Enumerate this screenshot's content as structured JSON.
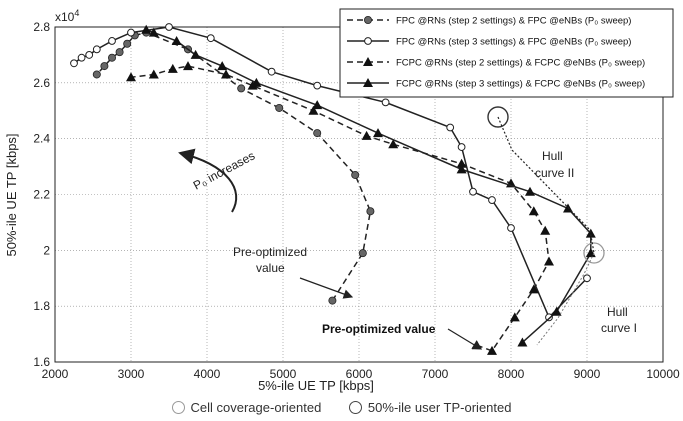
{
  "chart_data": {
    "type": "line",
    "xlabel": "5%-ile UE TP [kbps]",
    "ylabel": "50%-ile UE TP [kbps]",
    "y_multiplier_label": "x10",
    "y_multiplier_exp": "4",
    "xlim": [
      2000,
      10000
    ],
    "ylim": [
      1.6,
      2.8
    ],
    "xticks": [
      2000,
      3000,
      4000,
      5000,
      6000,
      7000,
      8000,
      9000,
      10000
    ],
    "yticks": [
      1.6,
      1.8,
      2.0,
      2.2,
      2.4,
      2.6,
      2.8
    ],
    "ytick_labels": [
      "1.6",
      "1.8",
      "2",
      "2.2",
      "2.4",
      "2.6",
      "2.8"
    ],
    "grid": true,
    "legend_placement": "top-right",
    "series": [
      {
        "name": "FPC @RNs (step 2 settings) & FPC @eNBs (P₀ sweep)",
        "marker": "filled-circle",
        "line": "dashed",
        "x": [
          5650,
          6050,
          6150,
          5950,
          5450,
          4950,
          4450,
          3750,
          3200,
          3050,
          2950,
          2850,
          2750,
          2650,
          2550
        ],
        "y": [
          1.82,
          1.99,
          2.14,
          2.27,
          2.42,
          2.51,
          2.58,
          2.72,
          2.78,
          2.77,
          2.74,
          2.71,
          2.69,
          2.66,
          2.63
        ]
      },
      {
        "name": "FPC @RNs (step 3 settings) & FPC @eNBs (P₀ sweep)",
        "marker": "open-circle",
        "line": "solid",
        "x": [
          9000,
          8500,
          8000,
          7750,
          7500,
          7350,
          7200,
          6350,
          5450,
          4850,
          4050,
          3500,
          3000,
          2750,
          2550,
          2450,
          2350,
          2250
        ],
        "y": [
          1.9,
          1.76,
          2.08,
          2.18,
          2.21,
          2.37,
          2.44,
          2.53,
          2.59,
          2.64,
          2.76,
          2.8,
          2.78,
          2.75,
          2.72,
          2.7,
          2.69,
          2.67
        ]
      },
      {
        "name": "FCPC @RNs (step 2 settings) & FCPC @eNBs (P₀ sweep)",
        "marker": "filled-triangle",
        "line": "dashed",
        "x": [
          7550,
          7750,
          8050,
          8300,
          8500,
          8450,
          8300,
          8000,
          7350,
          6450,
          6100,
          5400,
          4600,
          4250,
          3750,
          3550,
          3300,
          3000
        ],
        "y": [
          1.66,
          1.64,
          1.76,
          1.86,
          1.96,
          2.07,
          2.14,
          2.24,
          2.31,
          2.38,
          2.41,
          2.5,
          2.59,
          2.63,
          2.66,
          2.65,
          2.63,
          2.62
        ]
      },
      {
        "name": "FCPC @RNs (step 3 settings) & FCPC @eNBs (P₀ sweep)",
        "marker": "filled-triangle",
        "line": "solid",
        "x": [
          8150,
          8600,
          9050,
          9050,
          8750,
          8250,
          7350,
          6250,
          5450,
          4650,
          4200,
          3850,
          3600,
          3300,
          3200
        ],
        "y": [
          1.67,
          1.78,
          1.99,
          2.06,
          2.15,
          2.21,
          2.29,
          2.42,
          2.52,
          2.6,
          2.66,
          2.7,
          2.75,
          2.78,
          2.79
        ]
      }
    ],
    "annotations": {
      "p0_increases": "P₀ increases",
      "pre_optimized_value_1": "Pre-optimized",
      "pre_optimized_value_2": "value",
      "pre_optimized_value_bold": "Pre-optimized value",
      "hull_curve_ii_line1": "Hull",
      "hull_curve_ii_line2": "curve II",
      "hull_curve_i_line1": "Hull",
      "hull_curve_i_line2": "curve I"
    },
    "bottom_legend": [
      {
        "label": "Cell coverage-oriented",
        "color": "#999999"
      },
      {
        "label": "50%-ile user TP-oriented",
        "color": "#444444"
      }
    ]
  }
}
